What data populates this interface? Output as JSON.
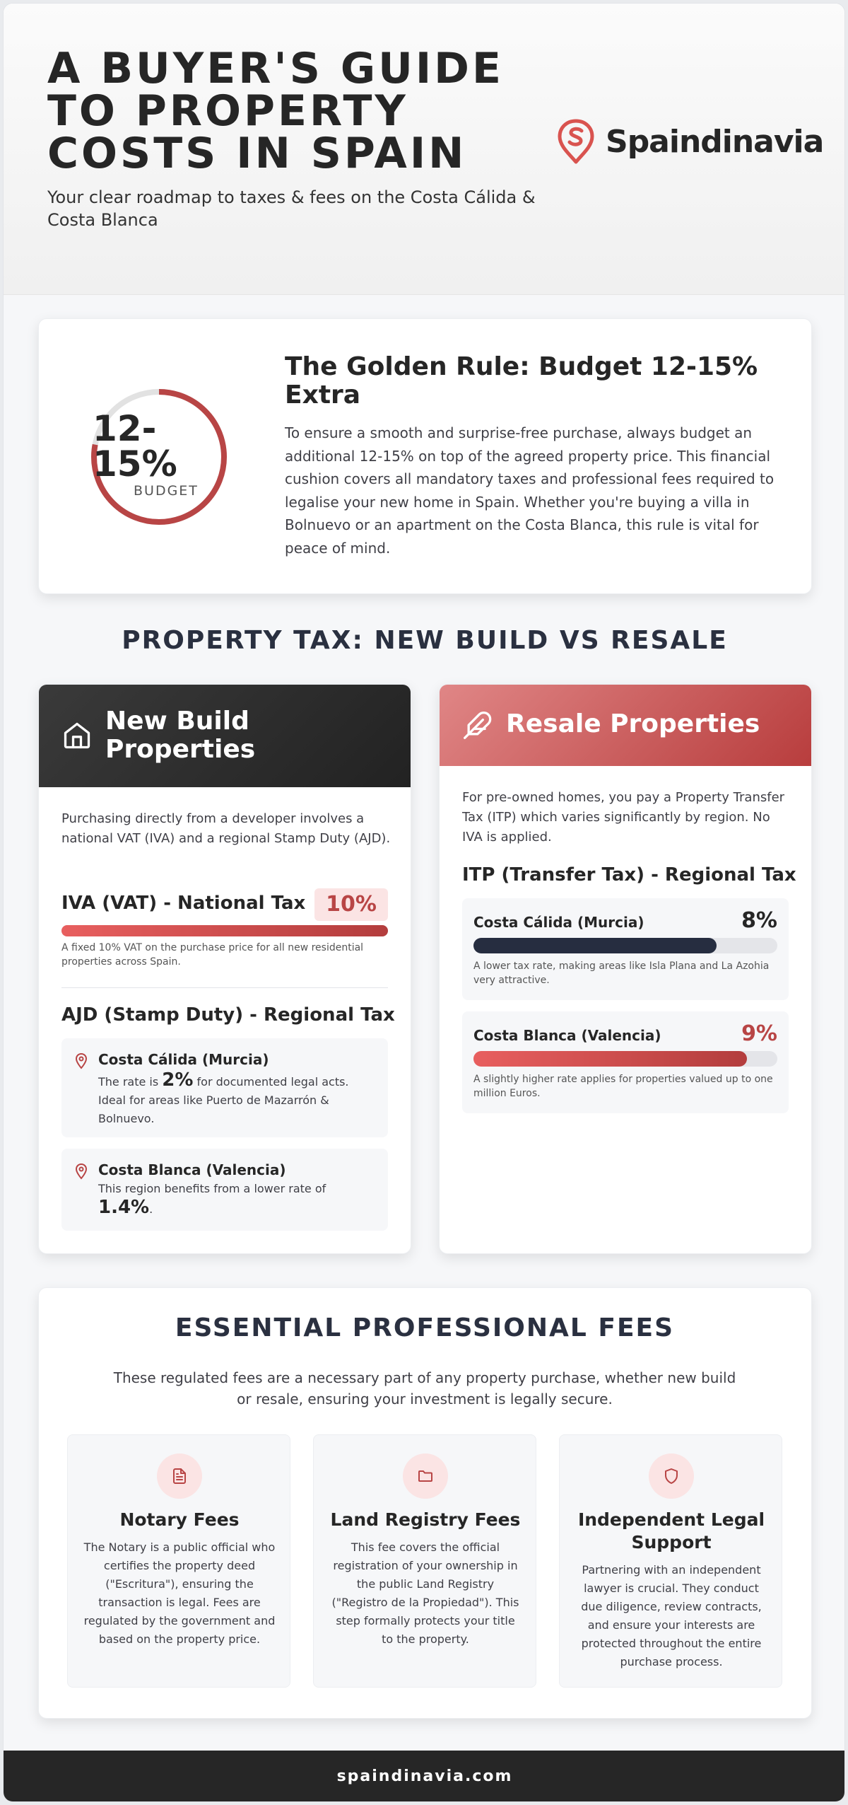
{
  "header": {
    "title": "A BUYER'S GUIDE TO PROPERTY COSTS IN SPAIN",
    "subtitle": "Your clear roadmap to taxes & fees on the Costa Cálida & Costa Blanca",
    "logo_text": "Spaindinavia",
    "logo_icon": "location-pin-s-icon"
  },
  "golden_rule": {
    "ring_value": "12-15%",
    "ring_label": "BUDGET",
    "ring_fill_fraction": 0.78,
    "title": "The Golden Rule: Budget 12-15% Extra",
    "body": "To ensure a smooth and surprise-free purchase, always budget an additional 12-15% on top of the agreed property price. This financial cushion covers all mandatory taxes and professional fees required to legalise your new home in Spain. Whether you're buying a villa in Bolnuevo or an apartment on the Costa Blanca, this rule is vital for peace of mind."
  },
  "property_tax": {
    "section_title": "PROPERTY TAX: NEW BUILD VS RESALE",
    "new_build": {
      "title": "New Build Properties",
      "icon": "house-icon",
      "intro": "Purchasing directly from a developer involves a national VAT (IVA) and a regional Stamp Duty (AJD).",
      "iva_title": "IVA (VAT) - National Tax",
      "iva_pct": "10%",
      "iva_fill": 1.0,
      "iva_note": "A fixed 10% VAT on the purchase price for all new residential properties across Spain.",
      "ajd_title": "AJD (Stamp Duty) - Regional Tax",
      "regions": [
        {
          "name": "Costa Cálida (Murcia)",
          "text_before": "The rate is ",
          "rate": "2%",
          "text_after": " for documented legal acts. Ideal for areas like Puerto de Mazarrón & Bolnuevo."
        },
        {
          "name": "Costa Blanca (Valencia)",
          "text_before": "This region benefits from a lower rate of ",
          "rate": "1.4%",
          "text_after": "."
        }
      ]
    },
    "resale": {
      "title": "Resale Properties",
      "icon": "feather-quill-icon",
      "intro": "For pre-owned homes, you pay a Property Transfer Tax (ITP) which varies significantly by region. No IVA is applied.",
      "itp_title": "ITP (Transfer Tax) - Regional Tax",
      "regions": [
        {
          "name": "Costa Cálida (Murcia)",
          "pct": "8%",
          "fill": 0.8,
          "note": "A lower tax rate, making areas like Isla Plana and La Azohia very attractive."
        },
        {
          "name": "Costa Blanca (Valencia)",
          "pct": "9%",
          "fill": 0.9,
          "note": "A slightly higher rate applies for properties valued up to one million Euros."
        }
      ]
    }
  },
  "fees": {
    "section_title": "ESSENTIAL PROFESSIONAL FEES",
    "intro": "These regulated fees are a necessary part of any property purchase, whether new build or resale, ensuring your investment is legally secure.",
    "items": [
      {
        "title": "Notary Fees",
        "icon": "document-icon",
        "body": "The Notary is a public official who certifies the property deed (\"Escritura\"), ensuring the transaction is legal. Fees are regulated by the government and based on the property price."
      },
      {
        "title": "Land Registry Fees",
        "icon": "folder-icon",
        "body": "This fee covers the official registration of your ownership in the public Land Registry (\"Registro de la Propiedad\"). This step formally protects your title to the property."
      },
      {
        "title": "Independent Legal Support",
        "icon": "shield-icon",
        "body": "Partnering with an independent lawyer is crucial. They conduct due diligence, review contracts, and ensure your interests are protected throughout the entire purchase process."
      }
    ]
  },
  "footer": {
    "text": "spaindinavia.com"
  },
  "colors": {
    "accent": "#b84545",
    "dark": "#262626",
    "navy": "#262d40"
  }
}
